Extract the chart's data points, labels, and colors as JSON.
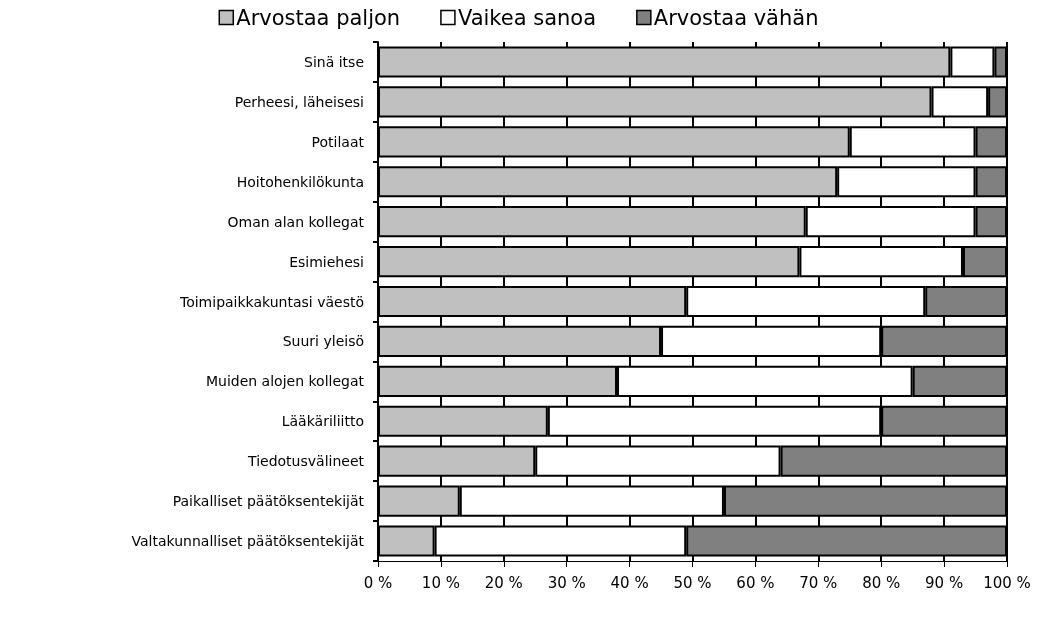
{
  "chart_data": {
    "type": "bar",
    "orientation": "horizontal",
    "stacked": true,
    "categories": [
      "Sinä itse",
      "Perheesi, läheisesi",
      "Potilaat",
      "Hoitohenkilökunta",
      "Oman alan kollegat",
      "Esimiehesi",
      "Toimipaikkakuntasi väestö",
      "Suuri yleisö",
      "Muiden alojen kollegat",
      "Lääkäriliitto",
      "Tiedotusvälineet",
      "Paikalliset päätöksentekijät",
      "Valtakunnalliset päätöksentekijät"
    ],
    "series": [
      {
        "name": "Arvostaa paljon",
        "color": "#c0c0c0",
        "values": [
          91,
          88,
          75,
          73,
          68,
          67,
          49,
          45,
          38,
          27,
          25,
          13,
          9
        ]
      },
      {
        "name": "Vaikea sanoa",
        "color": "#ffffff",
        "values": [
          7,
          9,
          20,
          22,
          27,
          26,
          38,
          35,
          47,
          53,
          39,
          42,
          40
        ]
      },
      {
        "name": "Arvostaa vähän",
        "color": "#808080",
        "values": [
          2,
          3,
          5,
          5,
          5,
          7,
          13,
          20,
          15,
          20,
          36,
          45,
          51
        ]
      }
    ],
    "xlim": [
      0,
      100
    ],
    "xticks": [
      {
        "value": 0,
        "label": "0 %"
      },
      {
        "value": 10,
        "label": "10 %"
      },
      {
        "value": 20,
        "label": "20 %"
      },
      {
        "value": 30,
        "label": "30 %"
      },
      {
        "value": 40,
        "label": "40 %"
      },
      {
        "value": 50,
        "label": "50 %"
      },
      {
        "value": 60,
        "label": "60 %"
      },
      {
        "value": 70,
        "label": "70 %"
      },
      {
        "value": 80,
        "label": "80 %"
      },
      {
        "value": 90,
        "label": "90 %"
      },
      {
        "value": 100,
        "label": "100 %"
      }
    ],
    "grid": "x",
    "legend": "top"
  }
}
